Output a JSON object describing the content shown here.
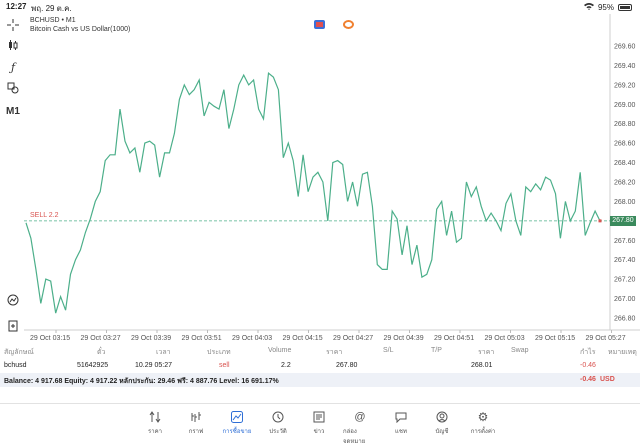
{
  "status_bar": {
    "time": "12:27",
    "date": "พฤ. 29 ต.ค.",
    "battery": "95%"
  },
  "toolbar": {
    "timeframe": "M1"
  },
  "chart_header": {
    "symbol": "BCHUSD • M1",
    "description": "Bitcoin Cash vs US Dollar(1000)"
  },
  "chart_data": {
    "type": "line",
    "color": "#4caf8a",
    "ylim": [
      267.0,
      270.0
    ],
    "yticks": [
      "269.60",
      "269.40",
      "269.20",
      "269.00",
      "268.80",
      "268.60",
      "268.40",
      "268.20",
      "268.00",
      "267.80",
      "267.60",
      "267.40",
      "267.20",
      "267.00",
      "266.80"
    ],
    "xticks": [
      "29 Oct 03:15",
      "29 Oct 03:27",
      "29 Oct 03:39",
      "29 Oct 03:51",
      "29 Oct 04:03",
      "29 Oct 04:15",
      "29 Oct 04:27",
      "29 Oct 04:39",
      "29 Oct 04:51",
      "29 Oct 05:03",
      "29 Oct 05:15",
      "29 Oct 05:27"
    ],
    "current_price": "267.80",
    "sell_line": {
      "label": "SELL 2.2",
      "price": 267.8
    },
    "values": [
      267.78,
      267.62,
      267.3,
      266.95,
      267.2,
      267.18,
      266.85,
      267.02,
      266.88,
      267.25,
      267.4,
      267.5,
      267.68,
      267.82,
      268.0,
      268.1,
      268.42,
      268.48,
      268.48,
      268.95,
      268.62,
      268.5,
      268.55,
      268.3,
      268.6,
      268.62,
      268.58,
      268.25,
      268.5,
      268.5,
      268.7,
      269.05,
      269.2,
      269.1,
      269.15,
      269.25,
      268.88,
      269.02,
      268.98,
      268.95,
      269.15,
      268.75,
      268.95,
      269.2,
      269.3,
      269.2,
      269.25,
      268.95,
      268.85,
      269.32,
      269.28,
      269.15,
      268.45,
      268.6,
      268.42,
      268.05,
      268.48,
      268.1,
      268.25,
      268.3,
      268.2,
      267.8,
      268.4,
      268.42,
      268.38,
      268.0,
      268.2,
      267.95,
      268.28,
      268.3,
      267.95,
      267.35,
      267.3,
      267.3,
      267.9,
      267.82,
      267.45,
      267.75,
      267.35,
      267.55,
      267.22,
      267.25,
      267.4,
      267.92,
      268.0,
      267.65,
      267.9,
      267.58,
      267.62,
      268.2,
      268.05,
      268.15,
      267.95,
      267.8,
      267.88,
      267.8,
      267.7,
      267.98,
      268.08,
      267.8,
      267.65,
      268.15,
      268.1,
      268.18,
      268.12,
      268.25,
      268.22,
      268.08,
      267.62,
      268.0,
      267.8,
      267.9,
      268.3,
      267.65,
      267.78,
      267.9,
      267.8
    ]
  },
  "table": {
    "headers": [
      "สัญลักษณ์",
      "ตั๋ว",
      "เวลา",
      "ประเภท",
      "Volume",
      "ราคา",
      "S/L",
      "T/P",
      "ราคา",
      "Swap",
      "กำไร",
      "หมายเหตุ"
    ],
    "row": {
      "symbol": "bchusd",
      "ticket": "51642925",
      "time": "10.29 05:27",
      "type": "sell",
      "volume": "2.2",
      "price": "267.80",
      "sl": "",
      "tp": "",
      "current": "268.01",
      "swap": "",
      "profit": "-0.46",
      "comment": ""
    }
  },
  "balance": {
    "text": "Balance: 4 917.68 Equity: 4 917.22 หลักประกัน: 29.46 ฟรี: 4 887.76 Level: 16 691.17%",
    "profit": "-0.46",
    "currency": "USD"
  },
  "tabs": [
    {
      "label": "ราคา",
      "icon": "quotes-icon"
    },
    {
      "label": "กราฟ",
      "icon": "chart-icon"
    },
    {
      "label": "การซื้อขาย",
      "icon": "trade-icon",
      "active": true
    },
    {
      "label": "ประวัติ",
      "icon": "history-icon"
    },
    {
      "label": "ข่าว",
      "icon": "news-icon"
    },
    {
      "label": "กล่องจดหมาย",
      "icon": "mailbox-icon"
    },
    {
      "label": "แชท",
      "icon": "chat-icon"
    },
    {
      "label": "บัญชี",
      "icon": "account-icon"
    },
    {
      "label": "การตั้งค่า",
      "icon": "settings-icon"
    }
  ],
  "accent": "#2f6fd6"
}
